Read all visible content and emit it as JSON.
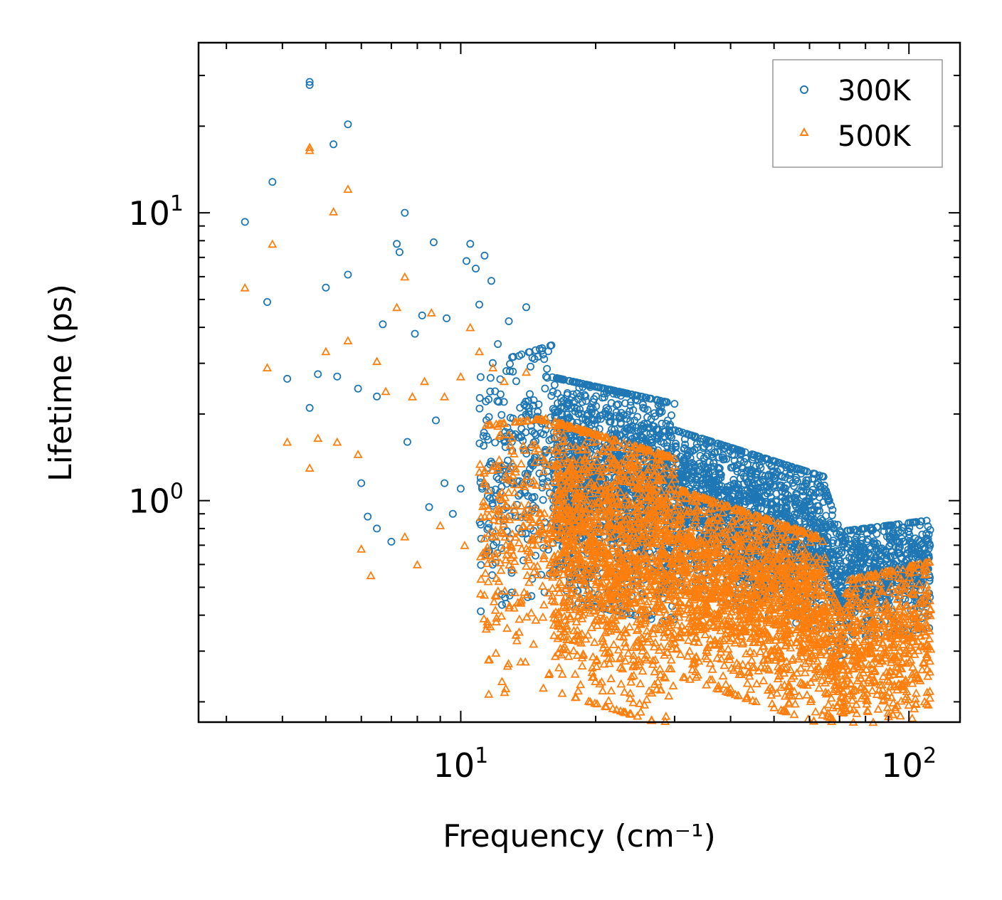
{
  "chart_data": {
    "type": "scatter",
    "xscale": "log",
    "yscale": "log",
    "xlim": [
      2.6,
      130
    ],
    "ylim": [
      0.17,
      39
    ],
    "xlabel": "Frequency (cm⁻¹)",
    "ylabel": "Lifetime (ps)",
    "xticks": [
      {
        "value": 10,
        "base": "10",
        "exp": "1"
      },
      {
        "value": 100,
        "base": "10",
        "exp": "2"
      }
    ],
    "yticks": [
      {
        "value": 1,
        "base": "10",
        "exp": "0"
      },
      {
        "value": 10,
        "base": "10",
        "exp": "1"
      }
    ],
    "legend_position": "top-right",
    "colors": {
      "s300": "#1f77b4",
      "s500": "#ff7f0e",
      "axis": "#000000",
      "legend_border": "#999999"
    },
    "series": [
      {
        "name": "300K",
        "marker": "circle",
        "color": "#1f77b4",
        "points": [
          [
            3.3,
            9.3
          ],
          [
            3.7,
            4.9
          ],
          [
            3.8,
            12.8
          ],
          [
            4.1,
            2.65
          ],
          [
            4.6,
            28.5
          ],
          [
            4.6,
            27.8
          ],
          [
            4.6,
            2.1
          ],
          [
            4.8,
            2.75
          ],
          [
            5.0,
            5.5
          ],
          [
            5.2,
            17.3
          ],
          [
            5.3,
            2.7
          ],
          [
            5.6,
            20.3
          ],
          [
            5.6,
            6.1
          ],
          [
            5.9,
            2.45
          ],
          [
            6.0,
            1.15
          ],
          [
            6.2,
            0.88
          ],
          [
            6.5,
            0.8
          ],
          [
            6.5,
            2.3
          ],
          [
            6.7,
            4.1
          ],
          [
            7.0,
            0.72
          ],
          [
            7.2,
            7.8
          ],
          [
            7.3,
            7.3
          ],
          [
            7.5,
            10.0
          ],
          [
            7.6,
            1.6
          ],
          [
            7.9,
            3.8
          ],
          [
            8.2,
            4.4
          ],
          [
            8.7,
            7.9
          ],
          [
            8.8,
            1.9
          ],
          [
            9.3,
            4.3
          ],
          [
            9.6,
            0.9
          ],
          [
            10.3,
            6.8
          ],
          [
            10.5,
            7.8
          ],
          [
            10.8,
            6.4
          ],
          [
            11.0,
            4.8
          ],
          [
            11.3,
            7.1
          ],
          [
            11.7,
            5.8
          ],
          [
            12.1,
            3.5
          ],
          [
            12.8,
            4.2
          ],
          [
            13.3,
            2.6
          ],
          [
            14.0,
            4.7
          ],
          [
            8.5,
            0.95
          ],
          [
            9.2,
            1.15
          ],
          [
            10.0,
            1.1
          ],
          [
            11.5,
            1.3
          ],
          [
            13.0,
            1.6
          ],
          [
            18.0,
            0.42
          ],
          [
            15.5,
            2.7
          ]
        ],
        "bands": [
          {
            "from": 11,
            "to": 16,
            "center": [
              1.3,
              1.55
            ],
            "spread": 0.5,
            "count": 260
          },
          {
            "from": 16,
            "to": 30,
            "center": [
              1.3,
              1.05
            ],
            "spread": 0.45,
            "count": 1400
          },
          {
            "from": 30,
            "to": 65,
            "center": [
              1.05,
              0.72
            ],
            "spread": 0.32,
            "count": 1400
          },
          {
            "from": 65,
            "to": 72,
            "center": [
              0.68,
              0.43
            ],
            "spread": 0.3,
            "count": 160
          },
          {
            "from": 72,
            "to": 112,
            "center": [
              0.55,
              0.6
            ],
            "spread": 0.22,
            "count": 550
          }
        ]
      },
      {
        "name": "500K",
        "marker": "triangle",
        "color": "#ff7f0e",
        "points": [
          [
            3.3,
            5.5
          ],
          [
            3.8,
            7.8
          ],
          [
            3.7,
            2.9
          ],
          [
            4.1,
            1.6
          ],
          [
            4.6,
            16.9
          ],
          [
            4.6,
            16.5
          ],
          [
            4.6,
            1.3
          ],
          [
            4.8,
            1.65
          ],
          [
            5.0,
            3.3
          ],
          [
            5.2,
            10.1
          ],
          [
            5.3,
            1.6
          ],
          [
            5.6,
            12.1
          ],
          [
            5.6,
            3.6
          ],
          [
            5.9,
            1.45
          ],
          [
            6.0,
            0.68
          ],
          [
            6.3,
            0.55
          ],
          [
            6.5,
            3.05
          ],
          [
            6.8,
            2.4
          ],
          [
            7.2,
            4.7
          ],
          [
            7.5,
            6.0
          ],
          [
            7.8,
            2.3
          ],
          [
            8.3,
            2.6
          ],
          [
            8.6,
            4.5
          ],
          [
            9.2,
            2.3
          ],
          [
            10.0,
            2.7
          ],
          [
            10.5,
            4.0
          ],
          [
            11.0,
            3.3
          ],
          [
            11.8,
            2.9
          ],
          [
            12.5,
            2.6
          ],
          [
            13.2,
            0.48
          ],
          [
            14.0,
            2.8
          ],
          [
            18.0,
            0.25
          ],
          [
            18.5,
            0.23
          ],
          [
            19.0,
            0.43
          ],
          [
            7.5,
            0.75
          ],
          [
            8.0,
            0.6
          ],
          [
            9.0,
            0.82
          ],
          [
            10.2,
            0.7
          ],
          [
            12.0,
            0.38
          ],
          [
            13.5,
            0.35
          ]
        ],
        "bands": [
          {
            "from": 11,
            "to": 16,
            "center": [
              0.75,
              0.8
            ],
            "spread": 0.55,
            "count": 260
          },
          {
            "from": 16,
            "to": 30,
            "center": [
              0.78,
              0.58
            ],
            "spread": 0.55,
            "count": 1400
          },
          {
            "from": 30,
            "to": 65,
            "center": [
              0.6,
              0.4
            ],
            "spread": 0.38,
            "count": 1400
          },
          {
            "from": 65,
            "to": 72,
            "center": [
              0.33,
              0.24
            ],
            "spread": 0.3,
            "count": 160
          },
          {
            "from": 72,
            "to": 112,
            "center": [
              0.3,
              0.35
            ],
            "spread": 0.35,
            "count": 550
          }
        ]
      }
    ]
  }
}
